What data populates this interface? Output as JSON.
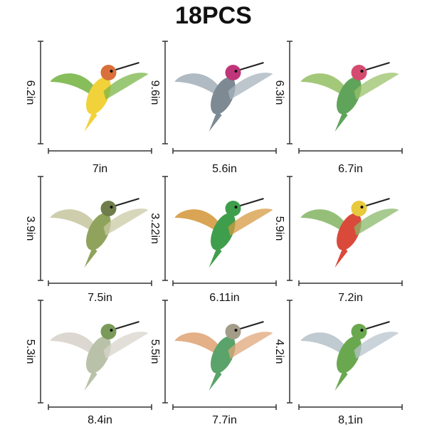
{
  "title": "18PCS",
  "items": [
    {
      "height": "6.2in",
      "width": "7in"
    },
    {
      "height": "9.6in",
      "width": "5.6in"
    },
    {
      "height": "6.3in",
      "width": "6.7in"
    },
    {
      "height": "3.9in",
      "width": "7.5in"
    },
    {
      "height": "3.22in",
      "width": "6.11in"
    },
    {
      "height": "5.9in",
      "width": "7.2in"
    },
    {
      "height": "5.3in",
      "width": "8.4in"
    },
    {
      "height": "5.5in",
      "width": "7.7in"
    },
    {
      "height": "4.2in",
      "width": "8,1in"
    }
  ]
}
